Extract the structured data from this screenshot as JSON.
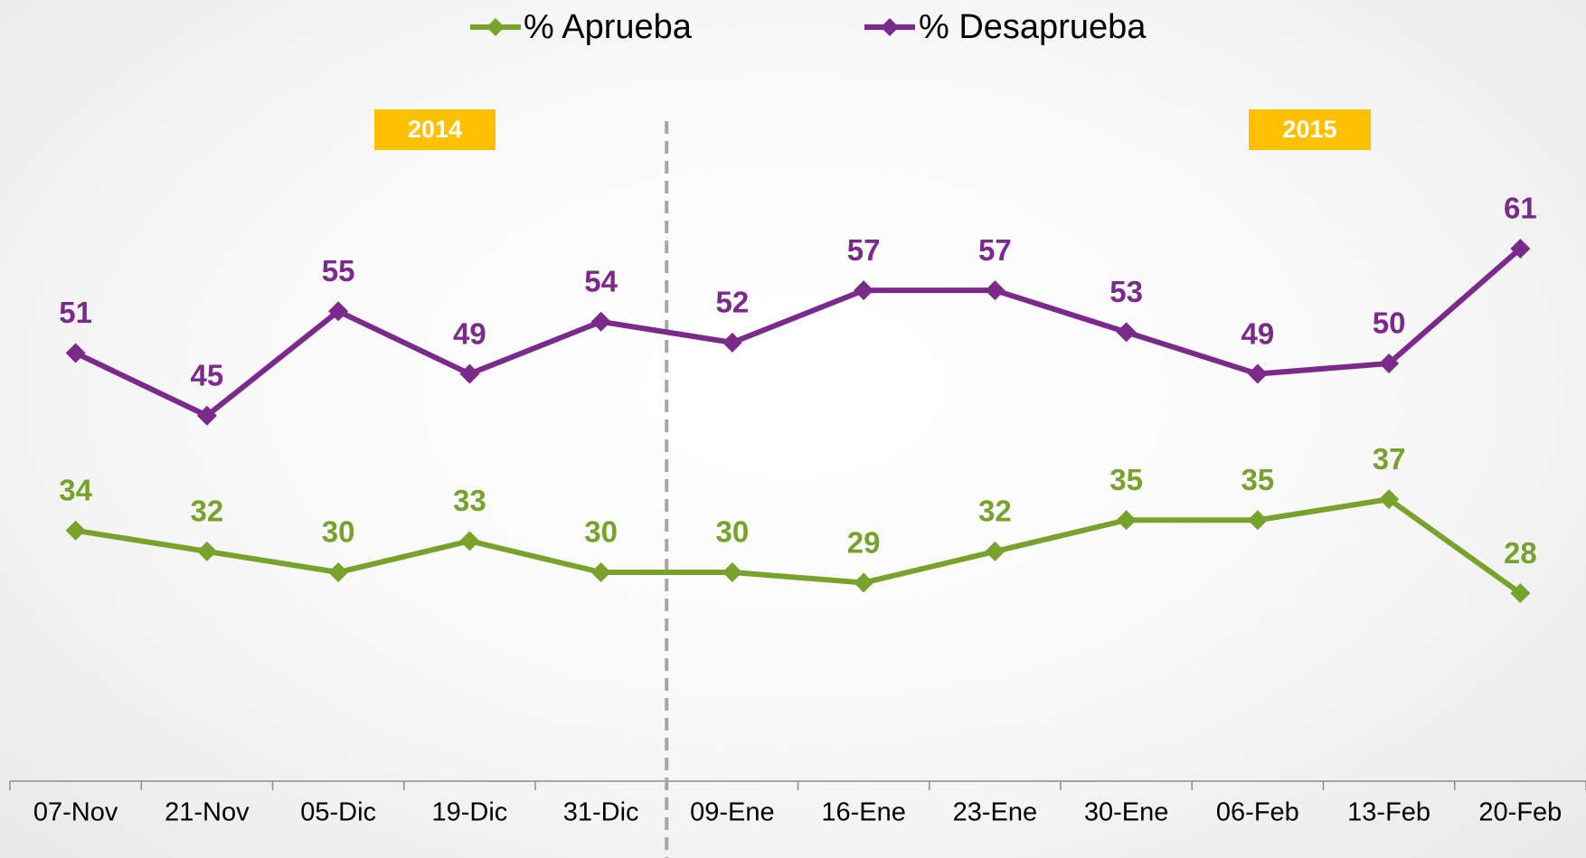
{
  "chart_data": {
    "type": "line",
    "categories": [
      "07-Nov",
      "21-Nov",
      "05-Dic",
      "19-Dic",
      "31-Dic",
      "09-Ene",
      "16-Ene",
      "23-Ene",
      "30-Ene",
      "06-Feb",
      "13-Feb",
      "20-Feb"
    ],
    "series": [
      {
        "name": "% Aprueba",
        "color": "#77a22b",
        "values": [
          34,
          32,
          30,
          33,
          30,
          30,
          29,
          32,
          35,
          35,
          37,
          28
        ]
      },
      {
        "name": "% Desaprueba",
        "color": "#7b2a8c",
        "values": [
          51,
          45,
          55,
          49,
          54,
          52,
          57,
          57,
          53,
          49,
          50,
          61
        ]
      }
    ],
    "ylim": [
      10,
      70
    ],
    "annotations": [
      "2014",
      "2015"
    ],
    "annotation_color": "#ffc000",
    "legend": "top",
    "grid": false
  }
}
